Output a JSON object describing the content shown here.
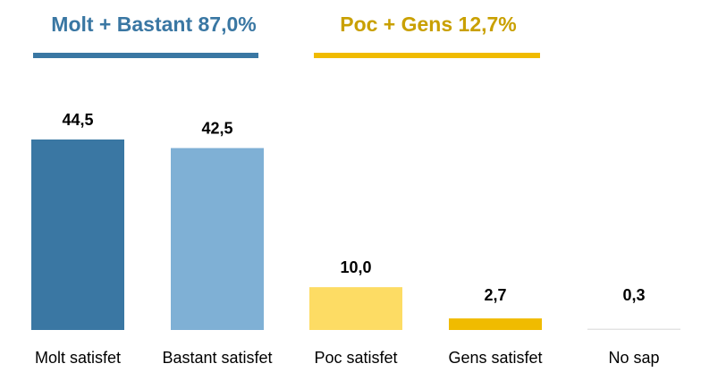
{
  "chart_data": {
    "type": "bar",
    "annotations": [
      {
        "text": "Molt + Bastant 87,0%",
        "color": "#3a77a3",
        "line_color": "#3a77a3"
      },
      {
        "text": "Poc + Gens 12,7%",
        "color": "#c9a000",
        "line_color": "#f0bb00"
      }
    ],
    "categories": [
      "Molt satisfet",
      "Bastant satisfet",
      "Poc satisfet",
      "Gens satisfet",
      "No sap"
    ],
    "values": [
      44.5,
      42.5,
      10.0,
      2.7,
      0.3
    ],
    "value_labels": [
      "44,5",
      "42,5",
      "10,0",
      "2,7",
      "0,3"
    ],
    "colors": [
      "#3a77a3",
      "#7fb0d5",
      "#fddc64",
      "#f0bb00",
      "#e3e3e3"
    ]
  }
}
